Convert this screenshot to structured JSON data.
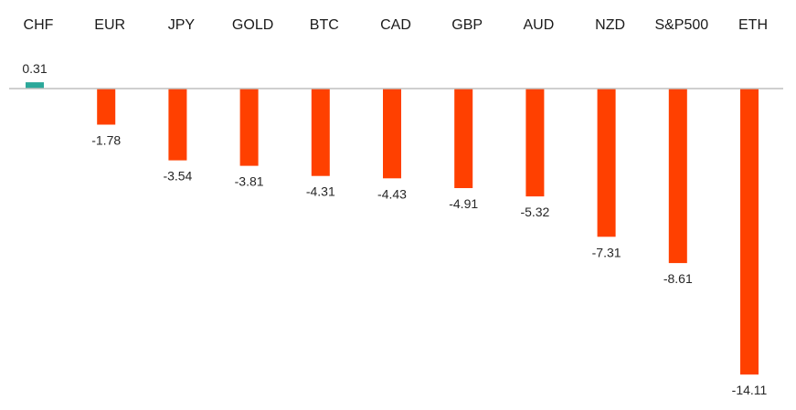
{
  "chart_data": {
    "type": "bar",
    "categories": [
      "CHF",
      "EUR",
      "JPY",
      "GOLD",
      "BTC",
      "CAD",
      "GBP",
      "AUD",
      "NZD",
      "S&P500",
      "ETH"
    ],
    "values": [
      0.31,
      -1.78,
      -3.54,
      -3.81,
      -4.31,
      -4.43,
      -4.91,
      -5.32,
      -7.31,
      -8.61,
      -14.11
    ],
    "value_labels": [
      "0.31",
      "-1.78",
      "-3.54",
      "-3.81",
      "-4.31",
      "-4.43",
      "-4.91",
      "-5.32",
      "-7.31",
      "-8.61",
      "-14.11"
    ],
    "title": "",
    "xlabel": "",
    "ylabel": "",
    "ylim": [
      -14.11,
      0.31
    ],
    "grid": false,
    "legend": "none",
    "colors": {
      "positive": "#2ba89a",
      "negative": "#ff4000",
      "baseline": "#bfbfbf",
      "text": "#1a1a1a"
    }
  }
}
